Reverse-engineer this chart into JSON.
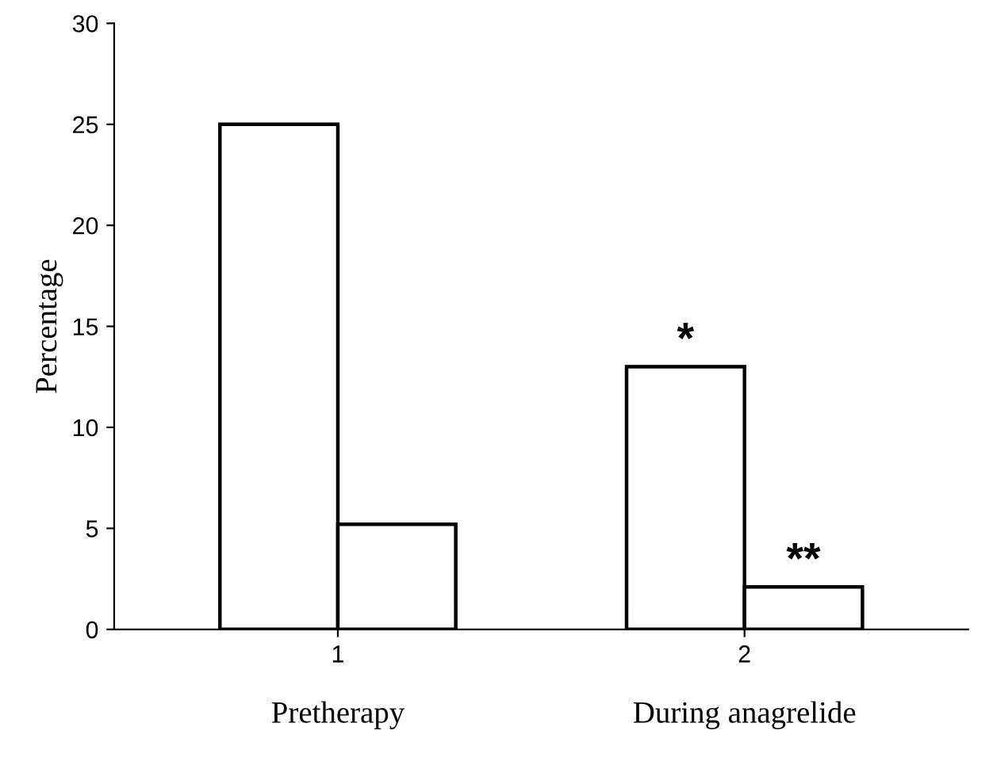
{
  "chart_data": {
    "type": "bar",
    "ylabel": "Percentage",
    "categories": [
      "1",
      "2"
    ],
    "series": [
      {
        "color": "#ffffff",
        "values": [
          25,
          13
        ],
        "value_labels": [
          null,
          "*"
        ]
      },
      {
        "color": "#ffffff",
        "values": [
          5.2,
          2.1
        ],
        "value_labels": [
          null,
          "**"
        ]
      }
    ],
    "ylim": [
      0,
      30
    ],
    "yticks": [
      0,
      5,
      10,
      15,
      20,
      25,
      30
    ],
    "grid": false,
    "legend": false,
    "annotations": [
      "Pretherapy",
      "During anagrelide"
    ]
  }
}
